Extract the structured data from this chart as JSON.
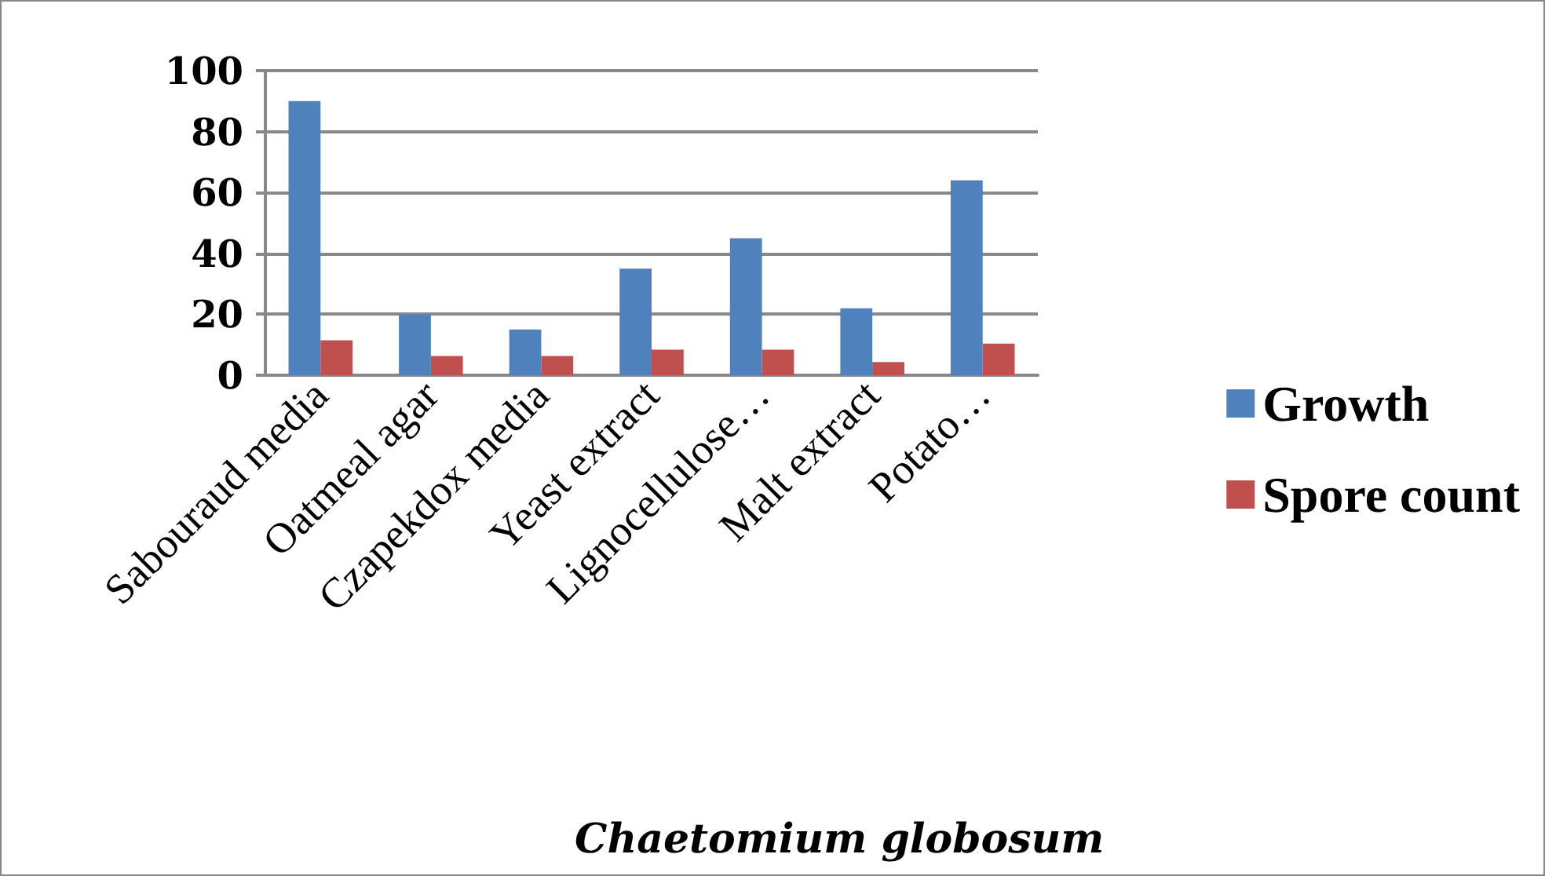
{
  "chart_data": {
    "type": "bar",
    "title": "Chaetomium globosum",
    "categories": [
      "Sabouraud media",
      "Oatmeal agar",
      "Czapekdox media",
      "Yeast extract",
      "Lignocellulose…",
      "Malt extract",
      "Potato…"
    ],
    "series": [
      {
        "name": "Growth",
        "color": "#4f81bd",
        "values": [
          90,
          20,
          15,
          35,
          45,
          22,
          64
        ]
      },
      {
        "name": "Spore count",
        "color": "#c0504d",
        "values": [
          11.5,
          6.3,
          6.3,
          8.4,
          8.4,
          4.3,
          10.4
        ]
      }
    ],
    "ylim": [
      0,
      100
    ],
    "yticks": [
      0,
      20,
      40,
      60,
      80,
      100
    ],
    "grid": "y",
    "legend": "right"
  }
}
